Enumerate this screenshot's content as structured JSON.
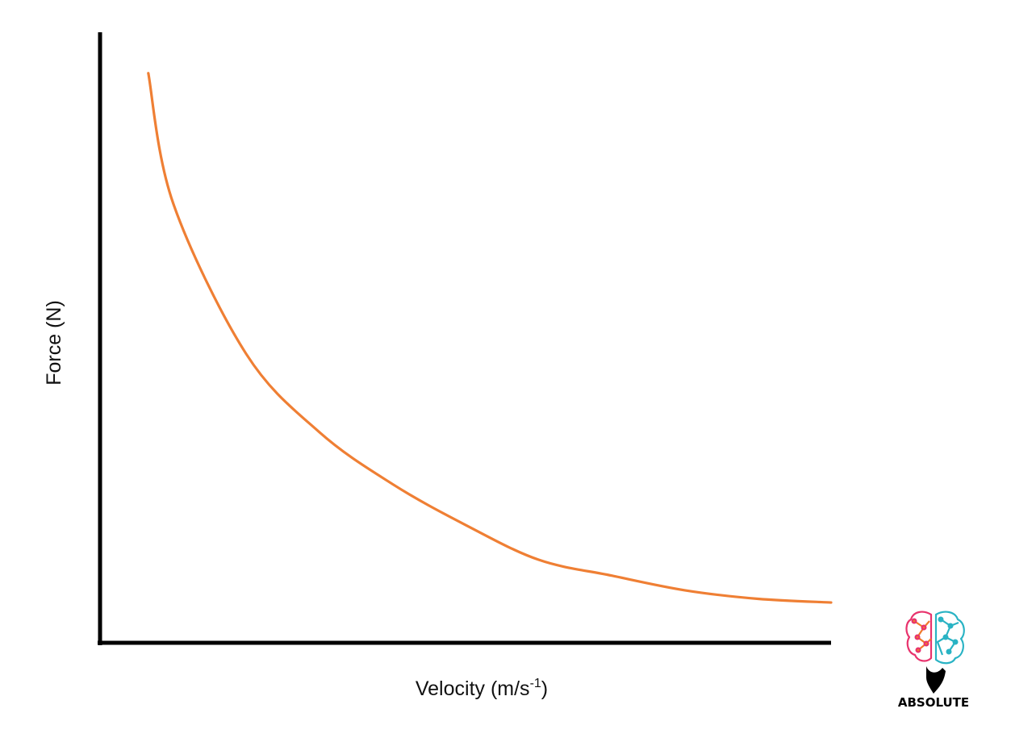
{
  "chart_data": {
    "type": "line",
    "title": "",
    "xlabel": "Velocity (m/s",
    "xlabel_superscript": "-1",
    "xlabel_suffix": ")",
    "ylabel": "Force (N)",
    "xlim": [
      0,
      1
    ],
    "ylim": [
      0,
      1
    ],
    "grid": false,
    "legend": "none",
    "series": [
      {
        "color": "#ef7f34",
        "x": [
          0.066,
          0.1,
          0.2,
          0.3,
          0.4,
          0.5,
          0.6,
          0.7,
          0.8,
          0.9,
          1.0
        ],
        "y": [
          0.933,
          0.72,
          0.473,
          0.345,
          0.26,
          0.193,
          0.136,
          0.11,
          0.086,
          0.072,
          0.066
        ]
      }
    ]
  },
  "logo": {
    "text": "ABSOLUTE",
    "colors": [
      "#e8336d",
      "#f07a2c",
      "#29b3c4"
    ]
  }
}
